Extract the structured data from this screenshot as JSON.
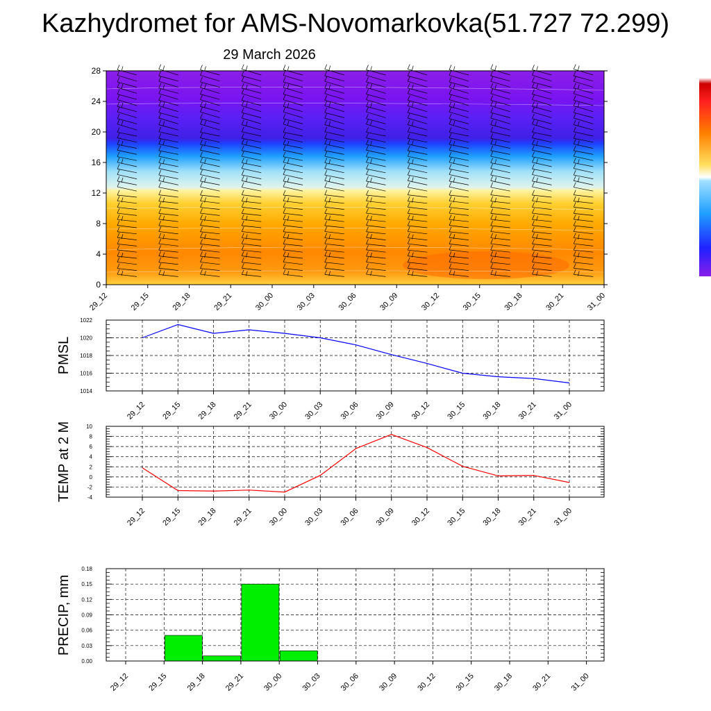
{
  "page": {
    "title": "Kazhydromet for AMS-Novomarkovka(51.727 72.299)",
    "subtitle": "29 March 2026"
  },
  "time_labels": [
    "29_12",
    "29_15",
    "29_18",
    "29_21",
    "30_00",
    "30_03",
    "30_06",
    "30_09",
    "30_12",
    "30_15",
    "30_18",
    "30_21",
    "31_00"
  ],
  "chart_data": [
    {
      "type": "heatmap",
      "name": "cross-section",
      "x": [
        "29_12",
        "29_15",
        "29_18",
        "29_21",
        "30_00",
        "30_03",
        "30_06",
        "30_09",
        "30_12",
        "30_15",
        "30_18",
        "30_21",
        "31_00"
      ],
      "ylim": [
        0,
        28
      ],
      "yticks": [
        0,
        4,
        8,
        12,
        16,
        20,
        24,
        28
      ],
      "wind_barbs": true,
      "colorbar": true
    },
    {
      "type": "line",
      "ylabel": "PMSL",
      "x": [
        "29_12",
        "29_15",
        "29_18",
        "29_21",
        "30_00",
        "30_03",
        "30_06",
        "30_09",
        "30_12",
        "30_15",
        "30_18",
        "30_21",
        "31_00"
      ],
      "y": [
        1020.0,
        1021.5,
        1020.5,
        1020.9,
        1020.5,
        1020.0,
        1019.2,
        1018.1,
        1017.1,
        1016.0,
        1015.6,
        1015.4,
        1014.9
      ],
      "ylim": [
        1014,
        1022
      ],
      "yticks": [
        1014,
        1016,
        1018,
        1020,
        1022
      ],
      "color": "#0000ff",
      "grid": true
    },
    {
      "type": "line",
      "ylabel": "TEMP at 2 M",
      "x": [
        "29_12",
        "29_15",
        "29_18",
        "29_21",
        "30_00",
        "30_03",
        "30_06",
        "30_09",
        "30_12",
        "30_15",
        "30_18",
        "30_21",
        "31_00"
      ],
      "y": [
        1.8,
        -2.7,
        -2.8,
        -2.6,
        -3.0,
        0.3,
        5.6,
        8.4,
        5.8,
        2.1,
        0.2,
        0.3,
        -1.1
      ],
      "ylim": [
        -4,
        10
      ],
      "yticks": [
        -4,
        -2,
        0,
        2,
        4,
        6,
        8,
        10
      ],
      "color": "#ff0000",
      "grid": true
    },
    {
      "type": "bar",
      "ylabel": "PRECIP, mm",
      "categories": [
        "29_12",
        "29_15",
        "29_18",
        "29_21",
        "30_00",
        "30_03",
        "30_06",
        "30_09",
        "30_12",
        "30_15",
        "30_18",
        "30_21",
        "31_00"
      ],
      "values": [
        0.0,
        0.05,
        0.01,
        0.15,
        0.02,
        0.0,
        0.0,
        0.0,
        0.0,
        0.0,
        0.0,
        0.0,
        0.0
      ],
      "ylim": [
        0.0,
        0.18
      ],
      "yticks": [
        "0.00",
        "0.03",
        "0.06",
        "0.09",
        "0.12",
        "0.15",
        "0.18"
      ],
      "color": "#00ee00",
      "grid": true
    }
  ]
}
